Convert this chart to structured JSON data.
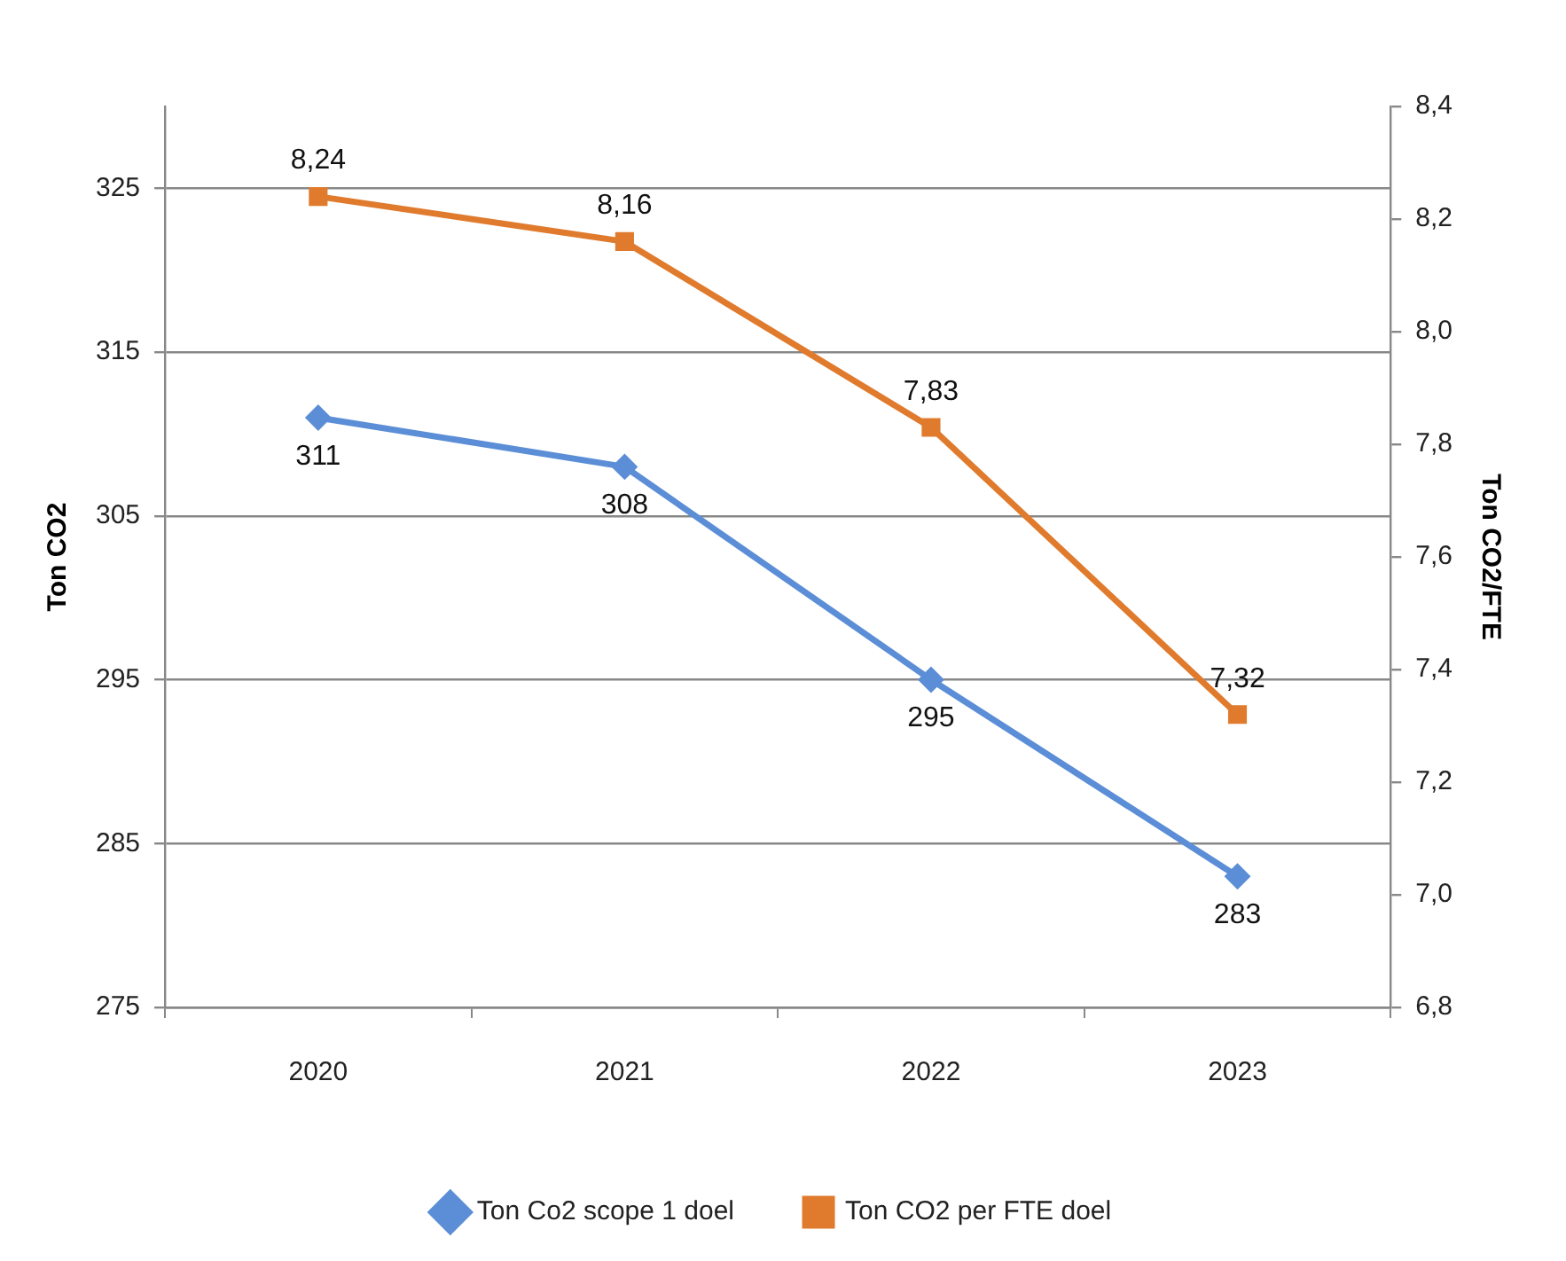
{
  "chart_data": {
    "type": "line",
    "ylabel": "Ton CO2",
    "y2label": "Ton CO2/FTE",
    "categories": [
      "2020",
      "2021",
      "2022",
      "2023"
    ],
    "series": [
      {
        "name": "Ton Co2 scope 1 doel",
        "color": "#5b8ed6",
        "values": [
          311,
          308,
          295,
          283
        ],
        "value_labels": [
          "311",
          "308",
          "295",
          "283"
        ],
        "marker": "diamond"
      },
      {
        "name": "Ton CO2 per FTE doel",
        "color": "#e07b2e",
        "values": [
          8.24,
          8.16,
          7.83,
          7.32
        ],
        "value_labels": [
          "8,24",
          "8,16",
          "7,83",
          "7,32"
        ],
        "marker": "square",
        "axis": "y2"
      }
    ],
    "ylim": [
      275,
      330
    ],
    "yticks": [
      275,
      285,
      295,
      305,
      315,
      325
    ],
    "y2lim": [
      6.8,
      8.4
    ],
    "y2ticks": [
      {
        "value": 6.8,
        "label": "6,8"
      },
      {
        "value": 7.0,
        "label": "7,0"
      },
      {
        "value": 7.2,
        "label": "7,2"
      },
      {
        "value": 7.4,
        "label": "7,4"
      },
      {
        "value": 7.6,
        "label": "7,6"
      },
      {
        "value": 7.8,
        "label": "7,8"
      },
      {
        "value": 8.0,
        "label": "8,0"
      },
      {
        "value": 8.2,
        "label": "8,2"
      },
      {
        "value": 8.4,
        "label": "8,4"
      }
    ],
    "grid": "y",
    "legend": "bottom",
    "line_style": "solid"
  }
}
